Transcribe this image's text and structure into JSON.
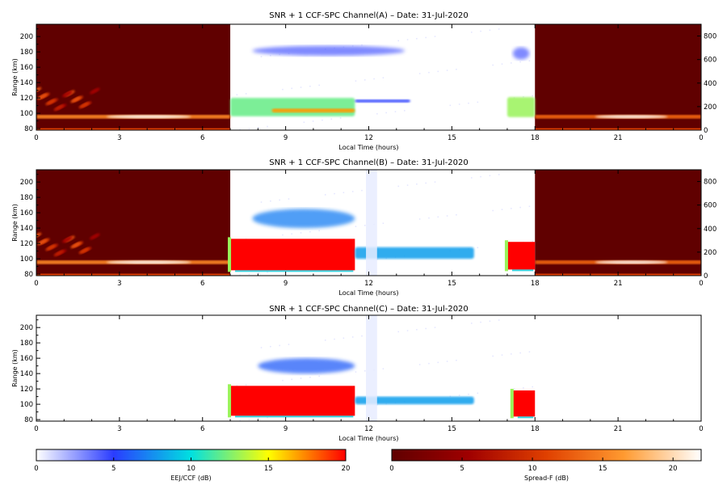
{
  "chart_data": [
    {
      "type": "heatmap",
      "title": "SNR + 1 CCF-SPC Channel(A) – Date: 31-Jul-2020",
      "xlabel": "Local Time (hours)",
      "ylabel": "Range (km)",
      "xlim": [
        0,
        24
      ],
      "ylim": [
        78,
        216
      ],
      "xticks": [
        "0",
        "3",
        "6",
        "9",
        "12",
        "15",
        "18",
        "21",
        "0"
      ],
      "yticks": [
        "80",
        "100",
        "120",
        "140",
        "160",
        "180",
        "200"
      ],
      "right_yticks": [
        "0",
        "200",
        "400",
        "600",
        "800"
      ],
      "right_ylim": [
        0,
        900
      ],
      "day_window_hours": [
        7.0,
        18.0
      ],
      "night_colorscale": "Spread-F (dB)",
      "day_colorscale": "EEJ/CCF (dB)",
      "features": [
        {
          "kind": "night-layer",
          "x": [
            0,
            7
          ],
          "y": [
            93,
            98
          ],
          "value_db": 15
        },
        {
          "kind": "night-layer",
          "x": [
            18,
            24
          ],
          "y": [
            93,
            98
          ],
          "value_db": 13
        },
        {
          "kind": "spread-f",
          "x": [
            0,
            2.2
          ],
          "y": [
            105,
            130
          ],
          "value_db": 12
        },
        {
          "kind": "eej",
          "x": [
            7.0,
            11.5
          ],
          "y": [
            96,
            120
          ],
          "value_db": 12
        },
        {
          "kind": "eej-core",
          "x": [
            8.5,
            11.5
          ],
          "y": [
            101,
            106
          ],
          "value_db": 17
        },
        {
          "kind": "eej",
          "x": [
            11.5,
            13.5
          ],
          "y": [
            114,
            118
          ],
          "value_db": 5
        },
        {
          "kind": "eej",
          "x": [
            17.0,
            18.0
          ],
          "y": [
            95,
            121
          ],
          "value_db": 13
        },
        {
          "kind": "150km-echo",
          "x": [
            7.8,
            13.3
          ],
          "y": [
            175,
            188
          ],
          "value_db": 4
        },
        {
          "kind": "150km-echo",
          "x": [
            17.2,
            17.8
          ],
          "y": [
            170,
            186
          ],
          "value_db": 4
        }
      ]
    },
    {
      "type": "heatmap",
      "title": "SNR + 1 CCF-SPC Channel(B) – Date: 31-Jul-2020",
      "xlabel": "Local Time (hours)",
      "ylabel": "Range (km)",
      "xlim": [
        0,
        24
      ],
      "ylim": [
        78,
        216
      ],
      "xticks": [
        "0",
        "3",
        "6",
        "9",
        "12",
        "15",
        "18",
        "21",
        "0"
      ],
      "yticks": [
        "80",
        "100",
        "120",
        "140",
        "160",
        "180",
        "200"
      ],
      "right_yticks": [
        "0",
        "200",
        "400",
        "600",
        "800"
      ],
      "right_ylim": [
        0,
        900
      ],
      "day_window_hours": [
        7.0,
        18.0
      ],
      "night_colorscale": "Spread-F (dB)",
      "day_colorscale": "EEJ/CCF (dB)",
      "features": [
        {
          "kind": "night-layer",
          "x": [
            0,
            7
          ],
          "y": [
            93,
            98
          ],
          "value_db": 15
        },
        {
          "kind": "night-layer",
          "x": [
            18,
            24
          ],
          "y": [
            93,
            98
          ],
          "value_db": 13
        },
        {
          "kind": "spread-f",
          "x": [
            0,
            2.2
          ],
          "y": [
            105,
            130
          ],
          "value_db": 12
        },
        {
          "kind": "saturated",
          "x": [
            7.0,
            11.5
          ],
          "y": [
            85,
            126
          ],
          "value_db": 20
        },
        {
          "kind": "eej",
          "x": [
            11.5,
            15.8
          ],
          "y": [
            100,
            115
          ],
          "value_db": 8
        },
        {
          "kind": "saturated",
          "x": [
            17.0,
            18.0
          ],
          "y": [
            86,
            122
          ],
          "value_db": 20
        },
        {
          "kind": "150km-echo",
          "x": [
            7.8,
            11.5
          ],
          "y": [
            140,
            165
          ],
          "value_db": 7
        }
      ]
    },
    {
      "type": "heatmap",
      "title": "SNR + 1 CCF-SPC Channel(C) – Date: 31-Jul-2020",
      "xlabel": "Local Time (hours)",
      "ylabel": "Range (km)",
      "xlim": [
        0,
        24
      ],
      "ylim": [
        78,
        216
      ],
      "xticks": [
        "0",
        "3",
        "6",
        "9",
        "12",
        "15",
        "18",
        "21",
        "0"
      ],
      "yticks": [
        "80",
        "100",
        "120",
        "140",
        "160",
        "180",
        "200"
      ],
      "day_window_hours": [
        7.0,
        18.0
      ],
      "day_colorscale": "EEJ/CCF (dB)",
      "features": [
        {
          "kind": "saturated",
          "x": [
            7.0,
            11.5
          ],
          "y": [
            85,
            124
          ],
          "value_db": 20
        },
        {
          "kind": "eej",
          "x": [
            11.5,
            15.8
          ],
          "y": [
            100,
            110
          ],
          "value_db": 8
        },
        {
          "kind": "saturated",
          "x": [
            17.2,
            18.0
          ],
          "y": [
            84,
            118
          ],
          "value_db": 20
        },
        {
          "kind": "150km-echo",
          "x": [
            8.0,
            11.5
          ],
          "y": [
            140,
            160
          ],
          "value_db": 6
        }
      ]
    }
  ],
  "colorbars": [
    {
      "label": "EEJ/CCF (dB)",
      "ticks": [
        "0",
        "5",
        "10",
        "15",
        "20"
      ],
      "range": [
        0,
        20
      ],
      "stops": [
        "#ffffff",
        "#2a3cff",
        "#00e0e0",
        "#ffff00",
        "#ff0000"
      ]
    },
    {
      "label": "Spread-F (dB)",
      "ticks": [
        "0",
        "5",
        "10",
        "15",
        "20"
      ],
      "range": [
        0,
        22
      ],
      "stops": [
        "#600000",
        "#a00000",
        "#e04000",
        "#ff9a30",
        "#ffffff"
      ]
    }
  ]
}
